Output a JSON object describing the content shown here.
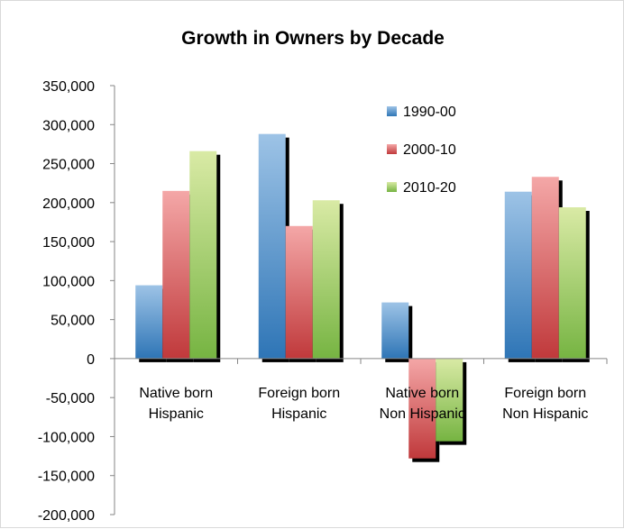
{
  "chart_data": {
    "type": "bar",
    "title": "Growth in Owners by Decade",
    "categories": [
      [
        "Native born",
        "Hispanic"
      ],
      [
        "Foreign born",
        "Hispanic"
      ],
      [
        "Native born",
        "Non Hispanic"
      ],
      [
        "Foreign born",
        "Non Hispanic"
      ]
    ],
    "series": [
      {
        "name": "1990-00",
        "values": [
          94000,
          288000,
          72000,
          214000
        ],
        "color_top": "#9dc3e6",
        "color_bottom": "#2e75b6"
      },
      {
        "name": "2000-10",
        "values": [
          215000,
          170000,
          -128000,
          233000
        ],
        "color_top": "#f4a7a7",
        "color_bottom": "#c0393b"
      },
      {
        "name": "2010-20",
        "values": [
          266000,
          203000,
          -106000,
          194000
        ],
        "color_top": "#d9eaa5",
        "color_bottom": "#76b442"
      }
    ],
    "ylim": [
      -200000,
      350000
    ],
    "yticks": [
      350000,
      300000,
      250000,
      200000,
      150000,
      100000,
      50000,
      0,
      -50000,
      -100000,
      -150000,
      -200000
    ],
    "ytick_labels": [
      "350,000",
      "300,000",
      "250,000",
      "200,000",
      "150,000",
      "100,000",
      "50,000",
      "0",
      "-50,000",
      "-100,000",
      "-150,000",
      "-200,000"
    ],
    "legend_position": "top-center",
    "grid": false
  }
}
